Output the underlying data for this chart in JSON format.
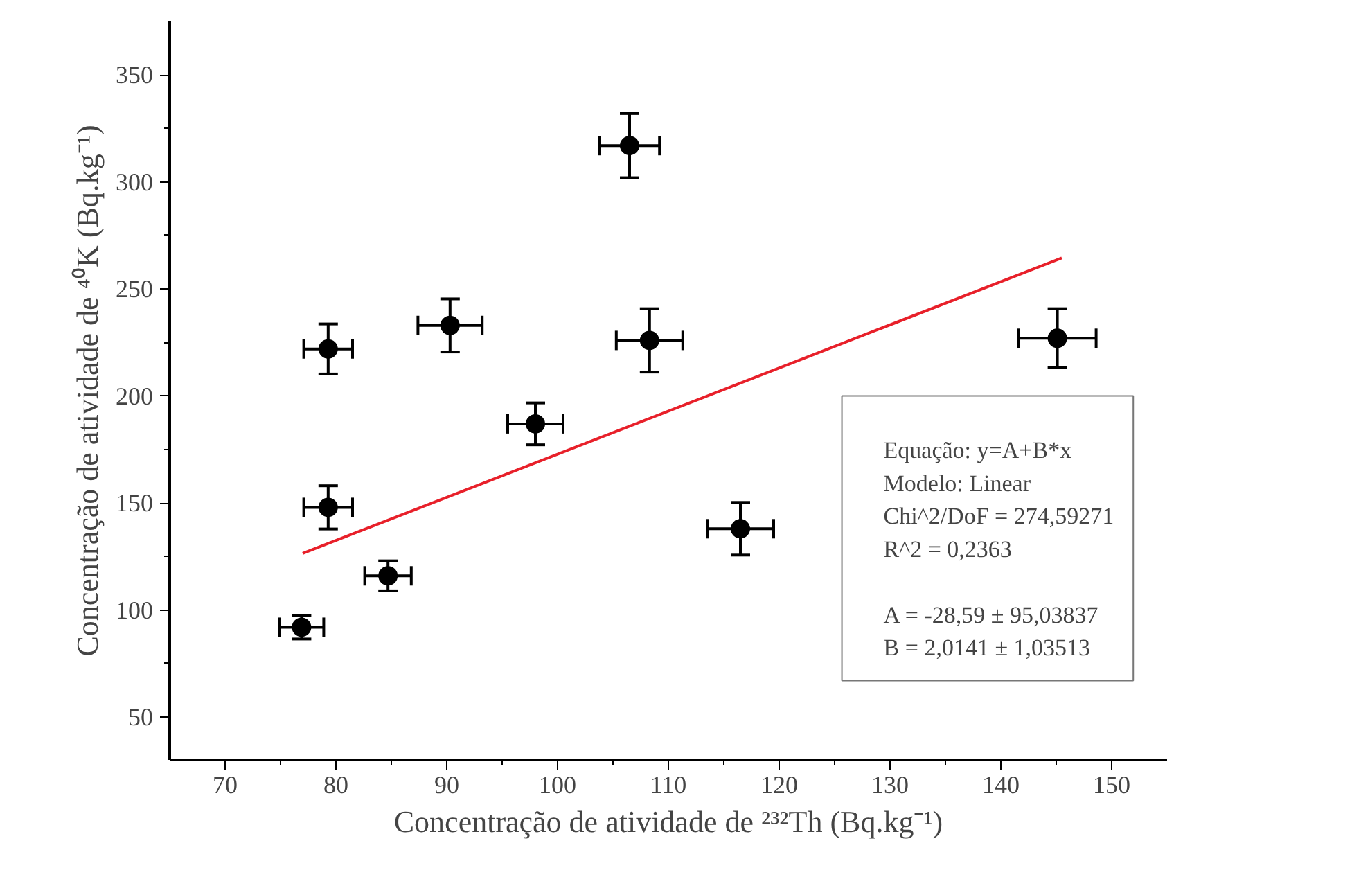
{
  "chart_data": {
    "type": "scatter",
    "xlabel": "Concentração de atividade de ²³²Th (Bq.kg⁻¹)",
    "ylabel": "Concentração de atividade de ⁴⁰K (Bq.kg⁻¹)",
    "xlim": [
      65,
      155
    ],
    "ylim": [
      30,
      375
    ],
    "xticks": [
      70,
      80,
      90,
      100,
      110,
      120,
      130,
      140,
      150
    ],
    "yticks": [
      50,
      100,
      150,
      200,
      250,
      300,
      350
    ],
    "grid": false,
    "marker": "circle",
    "series": [
      {
        "color": "#000000",
        "x": [
          76.9,
          79.3,
          79.3,
          84.7,
          90.3,
          98.0,
          106.5,
          108.3,
          116.5,
          145.1
        ],
        "values": [
          92,
          222,
          148,
          116,
          233,
          187,
          317,
          226,
          138,
          227
        ],
        "errors": [
          5.5,
          11.7,
          10.1,
          7,
          12.4,
          9.8,
          15,
          14.8,
          12.3,
          13.8
        ],
        "xerrors": [
          2.0,
          2.2,
          2.2,
          2.1,
          2.9,
          2.5,
          2.7,
          3.0,
          3.0,
          3.5
        ]
      },
      {
        "type": "line",
        "color": "#e8202a",
        "x": [
          77,
          145.5
        ],
        "values": [
          126.5,
          264.5
        ],
        "line_style": "solid",
        "marker": "none"
      }
    ],
    "annotations": [
      "Equação: y=A+B*x",
      "Modelo: Linear",
      "Chi^2/DoF = 274,59271",
      "R^2 = 0,2363",
      "A = -28,59  ± 95,03837",
      "B =  2,0141 ± 1,03513"
    ]
  }
}
